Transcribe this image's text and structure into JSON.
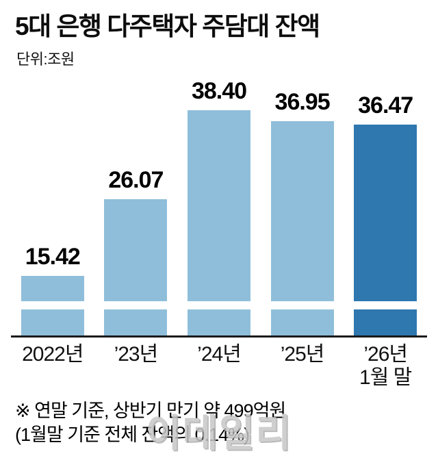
{
  "title": "5대 은행 다주택자 주담대 잔액",
  "unit_label": "단위:조원",
  "chart_data": {
    "type": "bar",
    "title": "5대 은행 다주택자 주담대 잔액",
    "unit": "조원",
    "categories": [
      "2022년",
      "’23년",
      "’24년",
      "’25년",
      "’26년\n1월 말"
    ],
    "values": [
      15.42,
      26.07,
      38.4,
      36.95,
      36.47
    ],
    "value_labels": [
      "15.42",
      "26.07",
      "38.40",
      "36.95",
      "36.47"
    ],
    "highlight_index": 4,
    "bar_color": "#8fbeda",
    "highlight_color": "#2e77af",
    "axis_color": "#1a1a1a",
    "broken_axis": true,
    "legend": "none",
    "grid": false
  },
  "footnote": {
    "line1": "※ 연말 기준, 상반기 만기 약 499억원",
    "line2": "(1월말 기준 전체 잔액의 0.14%)"
  },
  "watermark": "이데일리"
}
